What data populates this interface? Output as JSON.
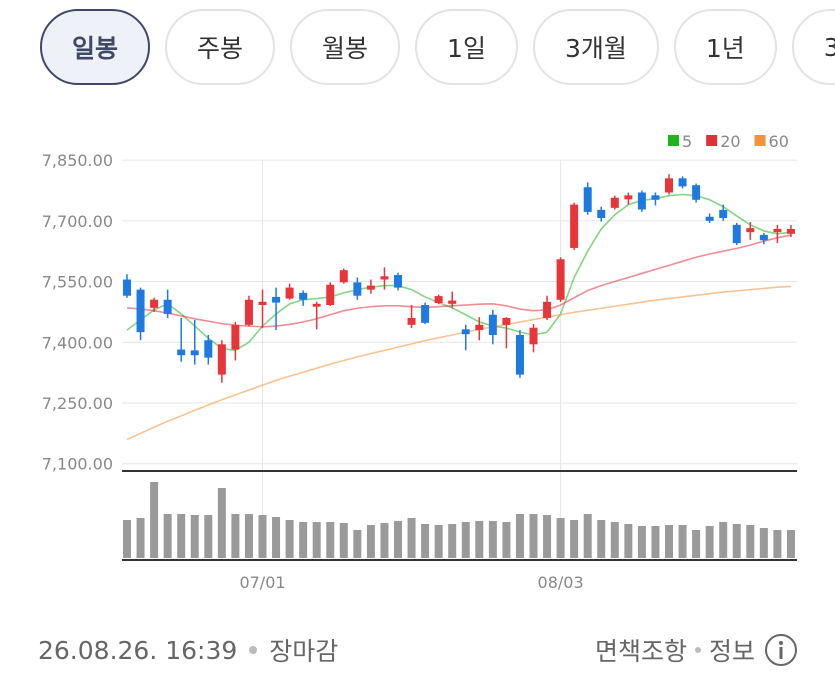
{
  "tabs": [
    {
      "label": "일봉",
      "selected": true
    },
    {
      "label": "주봉",
      "selected": false
    },
    {
      "label": "월봉",
      "selected": false
    },
    {
      "label": "1일",
      "selected": false
    },
    {
      "label": "3개월",
      "selected": false
    },
    {
      "label": "1년",
      "selected": false
    },
    {
      "label": "3",
      "selected": false
    }
  ],
  "chart_data": {
    "type": "candlestick",
    "categories": [
      null,
      null,
      null,
      null,
      null,
      null,
      null,
      null,
      null,
      null,
      "07/01",
      null,
      null,
      null,
      null,
      null,
      null,
      null,
      null,
      null,
      null,
      null,
      null,
      null,
      null,
      null,
      null,
      null,
      null,
      null,
      null,
      null,
      "08/03",
      null,
      null,
      null,
      null,
      null,
      null,
      null,
      null,
      null,
      null,
      null,
      null,
      null,
      null,
      null,
      null,
      null
    ],
    "ylim": [
      7082,
      7870
    ],
    "yticks": [
      {
        "value": 7100,
        "label": "7,100.00"
      },
      {
        "value": 7250,
        "label": "7,250.00"
      },
      {
        "value": 7400,
        "label": "7,400.00"
      },
      {
        "value": 7550,
        "label": "7,550.00"
      },
      {
        "value": 7700,
        "label": "7,700.00"
      },
      {
        "value": 7850,
        "label": "7,850.00"
      }
    ],
    "grid": true,
    "up_color": "#e8353a",
    "down_color": "#1e7ae0",
    "open": [
      7555,
      7530,
      7485,
      7505,
      7382,
      7380,
      7405,
      7320,
      7382,
      7443,
      7492,
      7512,
      7508,
      7522,
      7488,
      7492,
      7548,
      7548,
      7530,
      7555,
      7566,
      7443,
      7492,
      7497,
      7495,
      7432,
      7430,
      7468,
      7443,
      7418,
      7395,
      7460,
      7505,
      7633,
      7783,
      7727,
      7732,
      7753,
      7770,
      7763,
      7770,
      7805,
      7788,
      7710,
      7727,
      7690,
      7672,
      7665,
      7672,
      7668
    ],
    "high": [
      7568,
      7535,
      7510,
      7530,
      7460,
      7455,
      7418,
      7405,
      7450,
      7515,
      7530,
      7535,
      7545,
      7528,
      7500,
      7548,
      7582,
      7560,
      7555,
      7585,
      7572,
      7492,
      7498,
      7518,
      7525,
      7443,
      7462,
      7480,
      7462,
      7430,
      7445,
      7515,
      7610,
      7745,
      7795,
      7735,
      7762,
      7770,
      7775,
      7770,
      7815,
      7810,
      7792,
      7718,
      7740,
      7695,
      7697,
      7670,
      7690,
      7690
    ],
    "low": [
      7510,
      7405,
      7475,
      7460,
      7352,
      7345,
      7345,
      7300,
      7355,
      7440,
      7435,
      7430,
      7505,
      7490,
      7432,
      7490,
      7545,
      7505,
      7520,
      7530,
      7528,
      7435,
      7445,
      7494,
      7485,
      7380,
      7405,
      7395,
      7385,
      7312,
      7375,
      7455,
      7500,
      7628,
      7715,
      7698,
      7728,
      7740,
      7722,
      7738,
      7765,
      7780,
      7745,
      7695,
      7700,
      7640,
      7653,
      7642,
      7645,
      7660
    ],
    "close": [
      7515,
      7425,
      7505,
      7470,
      7368,
      7368,
      7362,
      7395,
      7443,
      7505,
      7500,
      7498,
      7535,
      7505,
      7495,
      7542,
      7578,
      7515,
      7540,
      7563,
      7535,
      7460,
      7448,
      7514,
      7503,
      7420,
      7443,
      7418,
      7460,
      7320,
      7436,
      7500,
      7605,
      7740,
      7722,
      7707,
      7757,
      7763,
      7728,
      7752,
      7805,
      7785,
      7752,
      7700,
      7707,
      7645,
      7682,
      7652,
      7680,
      7680
    ],
    "series": [
      {
        "name": "5",
        "color": "#1db41d",
        "values": [
          7430,
          7455,
          7480,
          7495,
          7470,
          7440,
          7410,
          7385,
          7380,
          7400,
          7440,
          7470,
          7495,
          7505,
          7508,
          7512,
          7522,
          7530,
          7536,
          7540,
          7540,
          7530,
          7512,
          7498,
          7485,
          7468,
          7450,
          7440,
          7435,
          7425,
          7418,
          7425,
          7470,
          7560,
          7625,
          7680,
          7715,
          7740,
          7750,
          7755,
          7762,
          7765,
          7762,
          7752,
          7735,
          7712,
          7690,
          7675,
          7668,
          7672
        ]
      },
      {
        "name": "20",
        "color": "#e0303a",
        "values": [
          7485,
          7482,
          7478,
          7472,
          7465,
          7458,
          7452,
          7446,
          7442,
          7440,
          7438,
          7440,
          7444,
          7450,
          7458,
          7468,
          7478,
          7484,
          7488,
          7490,
          7490,
          7488,
          7486,
          7488,
          7490,
          7492,
          7494,
          7495,
          7490,
          7482,
          7478,
          7480,
          7492,
          7510,
          7528,
          7540,
          7550,
          7560,
          7570,
          7580,
          7590,
          7600,
          7610,
          7618,
          7625,
          7632,
          7640,
          7650,
          7658,
          7665
        ]
      },
      {
        "name": "60",
        "color": "#f2923a",
        "values": [
          7160,
          7175,
          7190,
          7205,
          7218,
          7232,
          7245,
          7258,
          7270,
          7282,
          7294,
          7306,
          7316,
          7326,
          7336,
          7346,
          7355,
          7364,
          7372,
          7380,
          7388,
          7396,
          7404,
          7411,
          7418,
          7425,
          7432,
          7438,
          7444,
          7450,
          7456,
          7462,
          7468,
          7474,
          7479,
          7484,
          7489,
          7494,
          7499,
          7504,
          7508,
          7512,
          7516,
          7520,
          7524,
          7527,
          7530,
          7533,
          7536,
          7538
        ]
      }
    ],
    "volume": {
      "color": "#9a9a9a",
      "ylim": [
        0,
        80
      ],
      "values": [
        38,
        40,
        76,
        44,
        44,
        43,
        43,
        70,
        44,
        44,
        43,
        41,
        38,
        36,
        36,
        36,
        35,
        28,
        33,
        35,
        37,
        40,
        34,
        33,
        34,
        36,
        37,
        37,
        36,
        44,
        44,
        43,
        40,
        38,
        44,
        38,
        36,
        34,
        32,
        32,
        33,
        33,
        28,
        32,
        36,
        34,
        33,
        30,
        28,
        28
      ]
    }
  },
  "footer": {
    "timestamp": "26.08.26. 16:39",
    "status": "장마감",
    "disclaimer": "면책조항",
    "info": "정보"
  }
}
